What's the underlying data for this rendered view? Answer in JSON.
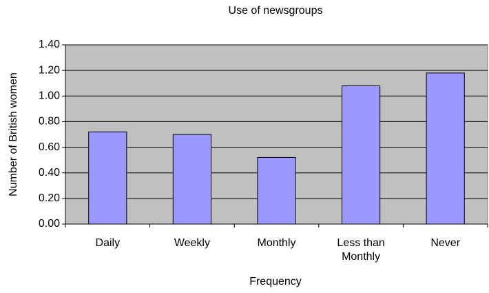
{
  "chart_data": {
    "type": "bar",
    "title": "Use of newsgroups",
    "x_label": "Frequency",
    "y_label": "Number of British women",
    "categories": [
      "Daily",
      "Weekly",
      "Monthly",
      "Less than Monthly",
      "Never"
    ],
    "values": [
      0.72,
      0.7,
      0.52,
      1.08,
      1.18
    ],
    "color": "#9999ff",
    "ylim": [
      0,
      1.4
    ],
    "yticks": [
      {
        "value": 0,
        "label": "0.00"
      },
      {
        "value": 0.2,
        "label": "0.20"
      },
      {
        "value": 0.4,
        "label": "0.40"
      },
      {
        "value": 0.6,
        "label": "0.60"
      },
      {
        "value": 0.8,
        "label": "0.80"
      },
      {
        "value": 1.0,
        "label": "1.00"
      },
      {
        "value": 1.2,
        "label": "1.20"
      },
      {
        "value": 1.4,
        "label": "1.40"
      }
    ],
    "grid": true
  }
}
